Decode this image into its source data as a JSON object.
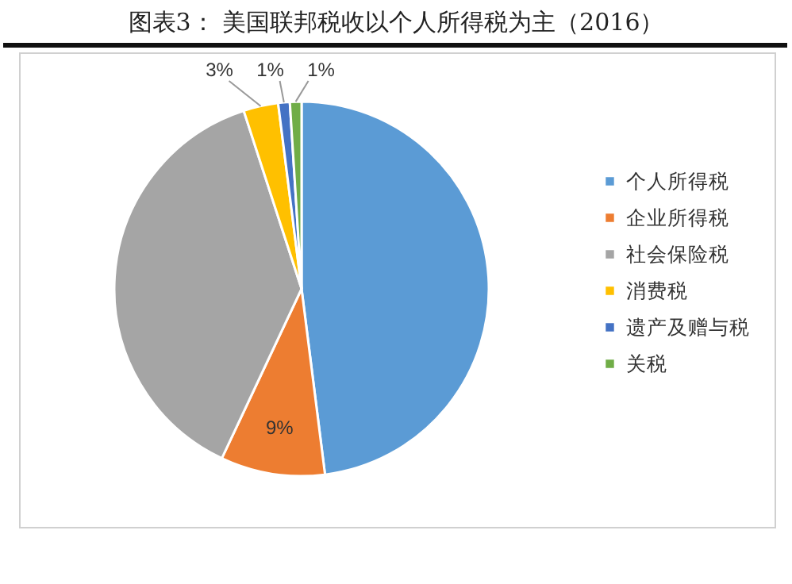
{
  "chart_data": {
    "type": "pie",
    "title": "图表3：  美国联邦税收以个人所得税为主（2016）",
    "categories": [
      "个人所得税",
      "企业所得税",
      "社会保险税",
      "消费税",
      "遗产及赠与税",
      "关税"
    ],
    "values": [
      48,
      9,
      38,
      3,
      1,
      1
    ],
    "colors": [
      "#5b9bd5",
      "#ed7d31",
      "#a5a5a5",
      "#ffc000",
      "#4472c4",
      "#70ad47"
    ],
    "value_labels": [
      null,
      "9%",
      null,
      "3%",
      "1%",
      "1%"
    ],
    "legend": "right"
  }
}
